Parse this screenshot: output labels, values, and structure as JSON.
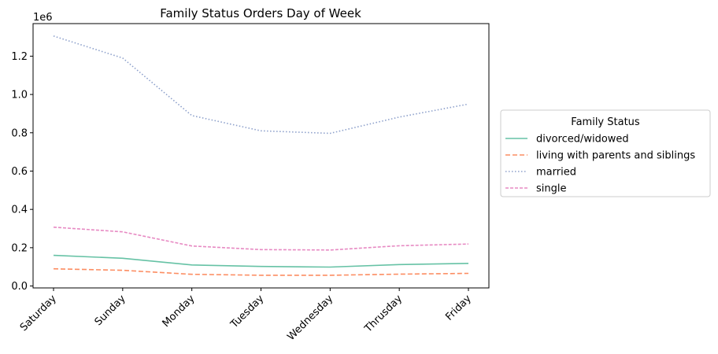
{
  "chart_data": {
    "type": "line",
    "title": "Family Status Orders Day of Week",
    "xlabel": "",
    "ylabel": "",
    "y_offset_label": "1e6",
    "categories": [
      "Saturday",
      "Sunday",
      "Monday",
      "Tuesday",
      "Wednesday",
      "Thrusday",
      "Friday"
    ],
    "ylim": [
      -10000,
      1370000
    ],
    "yticks": [
      0,
      200000,
      400000,
      600000,
      800000,
      1000000,
      1200000
    ],
    "ytick_labels": [
      "0.0",
      "0.2",
      "0.4",
      "0.6",
      "0.8",
      "1.0",
      "1.2"
    ],
    "grid": false,
    "legend": {
      "title": "Family Status",
      "placement": "center-right-outside"
    },
    "series": [
      {
        "name": "divorced/widowed",
        "color": "#66c2a5",
        "dash": "solid",
        "values": [
          160000,
          145000,
          110000,
          102000,
          99000,
          112000,
          118000
        ]
      },
      {
        "name": "living with parents and siblings",
        "color": "#fc8d62",
        "dash": "dashed",
        "values": [
          90000,
          82000,
          61000,
          56000,
          56000,
          62000,
          66000
        ]
      },
      {
        "name": "married",
        "color": "#8da0cb",
        "dash": "dotted",
        "values": [
          1305000,
          1190000,
          890000,
          810000,
          797000,
          882000,
          950000
        ]
      },
      {
        "name": "single",
        "color": "#e78ac3",
        "dash": "dashdense",
        "values": [
          307000,
          283000,
          209000,
          190000,
          188000,
          210000,
          219000
        ]
      }
    ]
  }
}
